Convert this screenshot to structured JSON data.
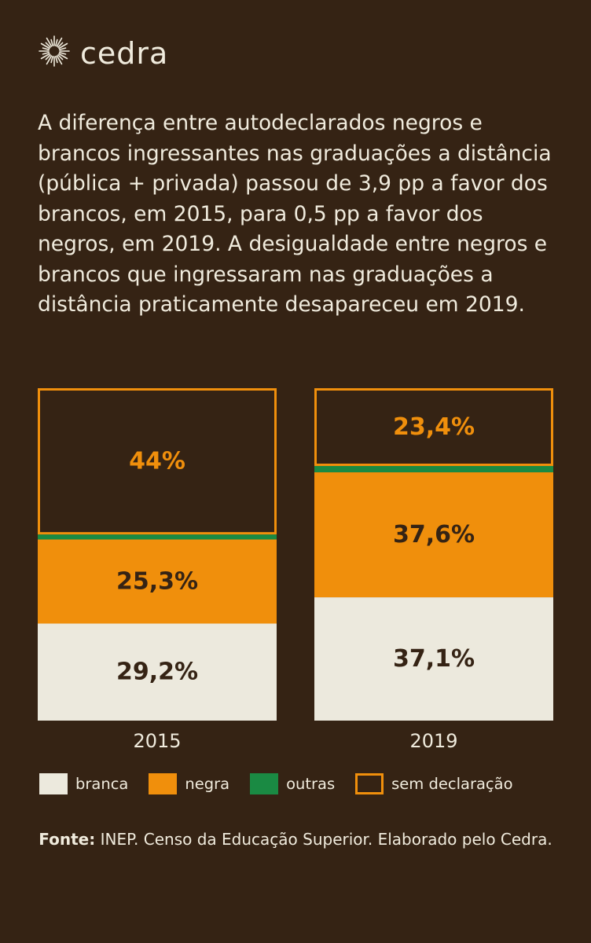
{
  "brand": {
    "name": "cedra",
    "icon": "sunburst-icon"
  },
  "lead_text": "A diferença entre autodeclarados negros e brancos ingressantes nas graduações a distância (pública + privada) passou de 3,9 pp a favor dos brancos, em 2015, para 0,5 pp a favor dos negros, em 2019. A desigualdade entre negros e brancos que ingressaram nas graduações a distância praticamente desapareceu em 2019.",
  "colors": {
    "background": "#352314",
    "branca": "#ece9dd",
    "negra": "#f08f0c",
    "outras": "#1a8a43",
    "sem_declaracao_border": "#f08f0c",
    "text_light": "#f0ebdd",
    "text_dark": "#352314"
  },
  "chart_data": {
    "type": "bar",
    "stacked": true,
    "categories": [
      "2015",
      "2019"
    ],
    "ylim": [
      0,
      100
    ],
    "series": [
      {
        "name": "branca",
        "values": [
          29.2,
          37.1
        ],
        "labels": [
          "29,2%",
          "37,1%"
        ]
      },
      {
        "name": "negra",
        "values": [
          25.3,
          37.6
        ],
        "labels": [
          "25,3%",
          "37,6%"
        ]
      },
      {
        "name": "outras",
        "values": [
          1.5,
          1.9
        ],
        "labels": [
          "",
          ""
        ]
      },
      {
        "name": "sem declaração",
        "values": [
          44.0,
          23.4
        ],
        "labels": [
          "44%",
          "23,4%"
        ]
      }
    ],
    "legend": [
      "branca",
      "negra",
      "outras",
      "sem declaração"
    ],
    "legend_position": "bottom"
  },
  "source": {
    "label": "Fonte:",
    "text": " INEP. Censo da Educação Superior. Elaborado pelo Cedra."
  }
}
